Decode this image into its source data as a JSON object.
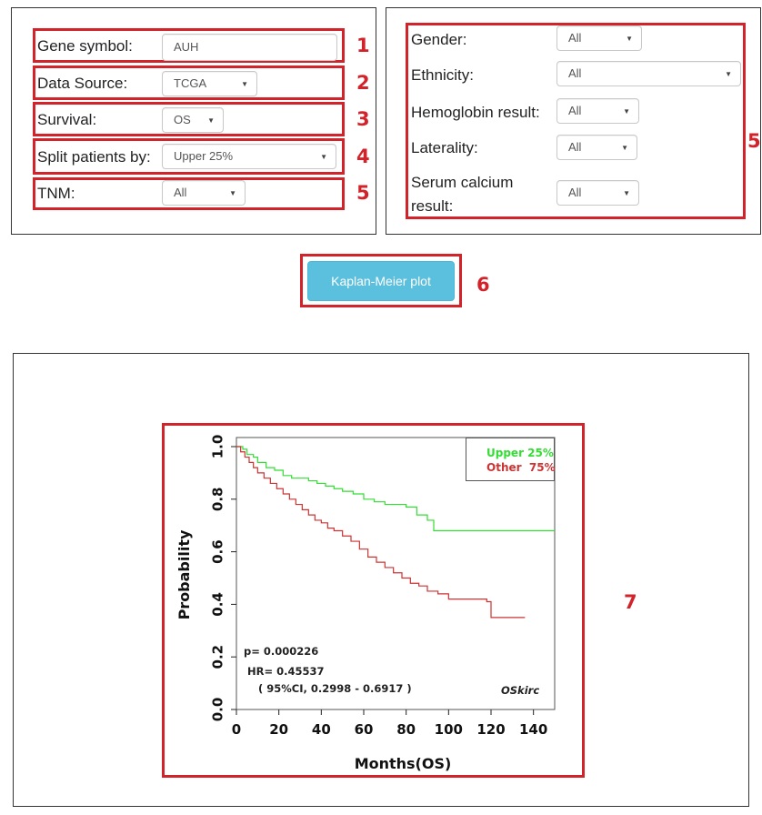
{
  "left_form": {
    "gene_symbol": {
      "label": "Gene symbol:",
      "value": "AUH"
    },
    "data_source": {
      "label": "Data Source:",
      "value": "TCGA"
    },
    "survival": {
      "label": "Survival:",
      "value": "OS"
    },
    "split": {
      "label": "Split patients by:",
      "value": "Upper 25%"
    },
    "tnm": {
      "label": "TNM:",
      "value": "All"
    }
  },
  "right_form": {
    "gender": {
      "label": "Gender:",
      "value": "All"
    },
    "ethnicity": {
      "label": "Ethnicity:",
      "value": "All"
    },
    "hemoglobin": {
      "label": "Hemoglobin result:",
      "value": "All"
    },
    "laterality": {
      "label": "Laterality:",
      "value": "All"
    },
    "serum_calcium": {
      "label_line1": "Serum calcium",
      "label_line2": "result:",
      "value": "All"
    }
  },
  "plot_button": {
    "label": "Kaplan-Meier plot"
  },
  "annotations": [
    "1",
    "2",
    "3",
    "4",
    "5",
    "5",
    "6",
    "7"
  ],
  "colors": {
    "annotation_red": "#d2232a",
    "button": "#5bc0de",
    "upper_series": "#33dd33",
    "other_series": "#cc3333"
  },
  "chart_data": {
    "type": "line",
    "xlabel": "Months(OS)",
    "ylabel": "Probability",
    "xlim": [
      0,
      150
    ],
    "ylim": [
      0,
      1
    ],
    "xticks": [
      "0",
      "20",
      "40",
      "60",
      "80",
      "100",
      "120",
      "140"
    ],
    "yticks": [
      "0.0",
      "0.2",
      "0.4",
      "0.6",
      "0.8",
      "1.0"
    ],
    "legend_position": "top-right",
    "series": [
      {
        "name": "Upper 25%",
        "color": "#33dd33",
        "x": [
          0,
          3,
          5,
          8,
          10,
          14,
          18,
          22,
          26,
          30,
          34,
          38,
          42,
          46,
          50,
          55,
          60,
          65,
          70,
          75,
          80,
          85,
          90,
          93,
          100,
          110,
          120,
          130,
          150
        ],
        "y": [
          1.0,
          0.99,
          0.97,
          0.96,
          0.94,
          0.92,
          0.91,
          0.89,
          0.88,
          0.88,
          0.87,
          0.86,
          0.85,
          0.84,
          0.83,
          0.82,
          0.8,
          0.79,
          0.78,
          0.78,
          0.77,
          0.74,
          0.72,
          0.68,
          0.68,
          0.68,
          0.68,
          0.68,
          0.68
        ]
      },
      {
        "name": "Other  75%",
        "color": "#cc3333",
        "x": [
          0,
          2,
          4,
          6,
          8,
          10,
          13,
          16,
          19,
          22,
          25,
          28,
          31,
          34,
          37,
          40,
          43,
          46,
          50,
          54,
          58,
          62,
          66,
          70,
          74,
          78,
          82,
          86,
          90,
          95,
          100,
          110,
          118,
          120,
          130,
          136
        ],
        "y": [
          1.0,
          0.98,
          0.96,
          0.94,
          0.92,
          0.9,
          0.88,
          0.86,
          0.84,
          0.82,
          0.8,
          0.78,
          0.76,
          0.74,
          0.72,
          0.71,
          0.69,
          0.68,
          0.66,
          0.64,
          0.61,
          0.58,
          0.56,
          0.54,
          0.52,
          0.5,
          0.48,
          0.47,
          0.45,
          0.44,
          0.42,
          0.42,
          0.41,
          0.35,
          0.35,
          0.35
        ]
      }
    ],
    "annotations": {
      "p_value": "p= 0.000226",
      "hr": "HR= 0.45537",
      "ci": "( 95%CI, 0.2998 - 0.6917 )",
      "tag": "OSkirc"
    }
  }
}
